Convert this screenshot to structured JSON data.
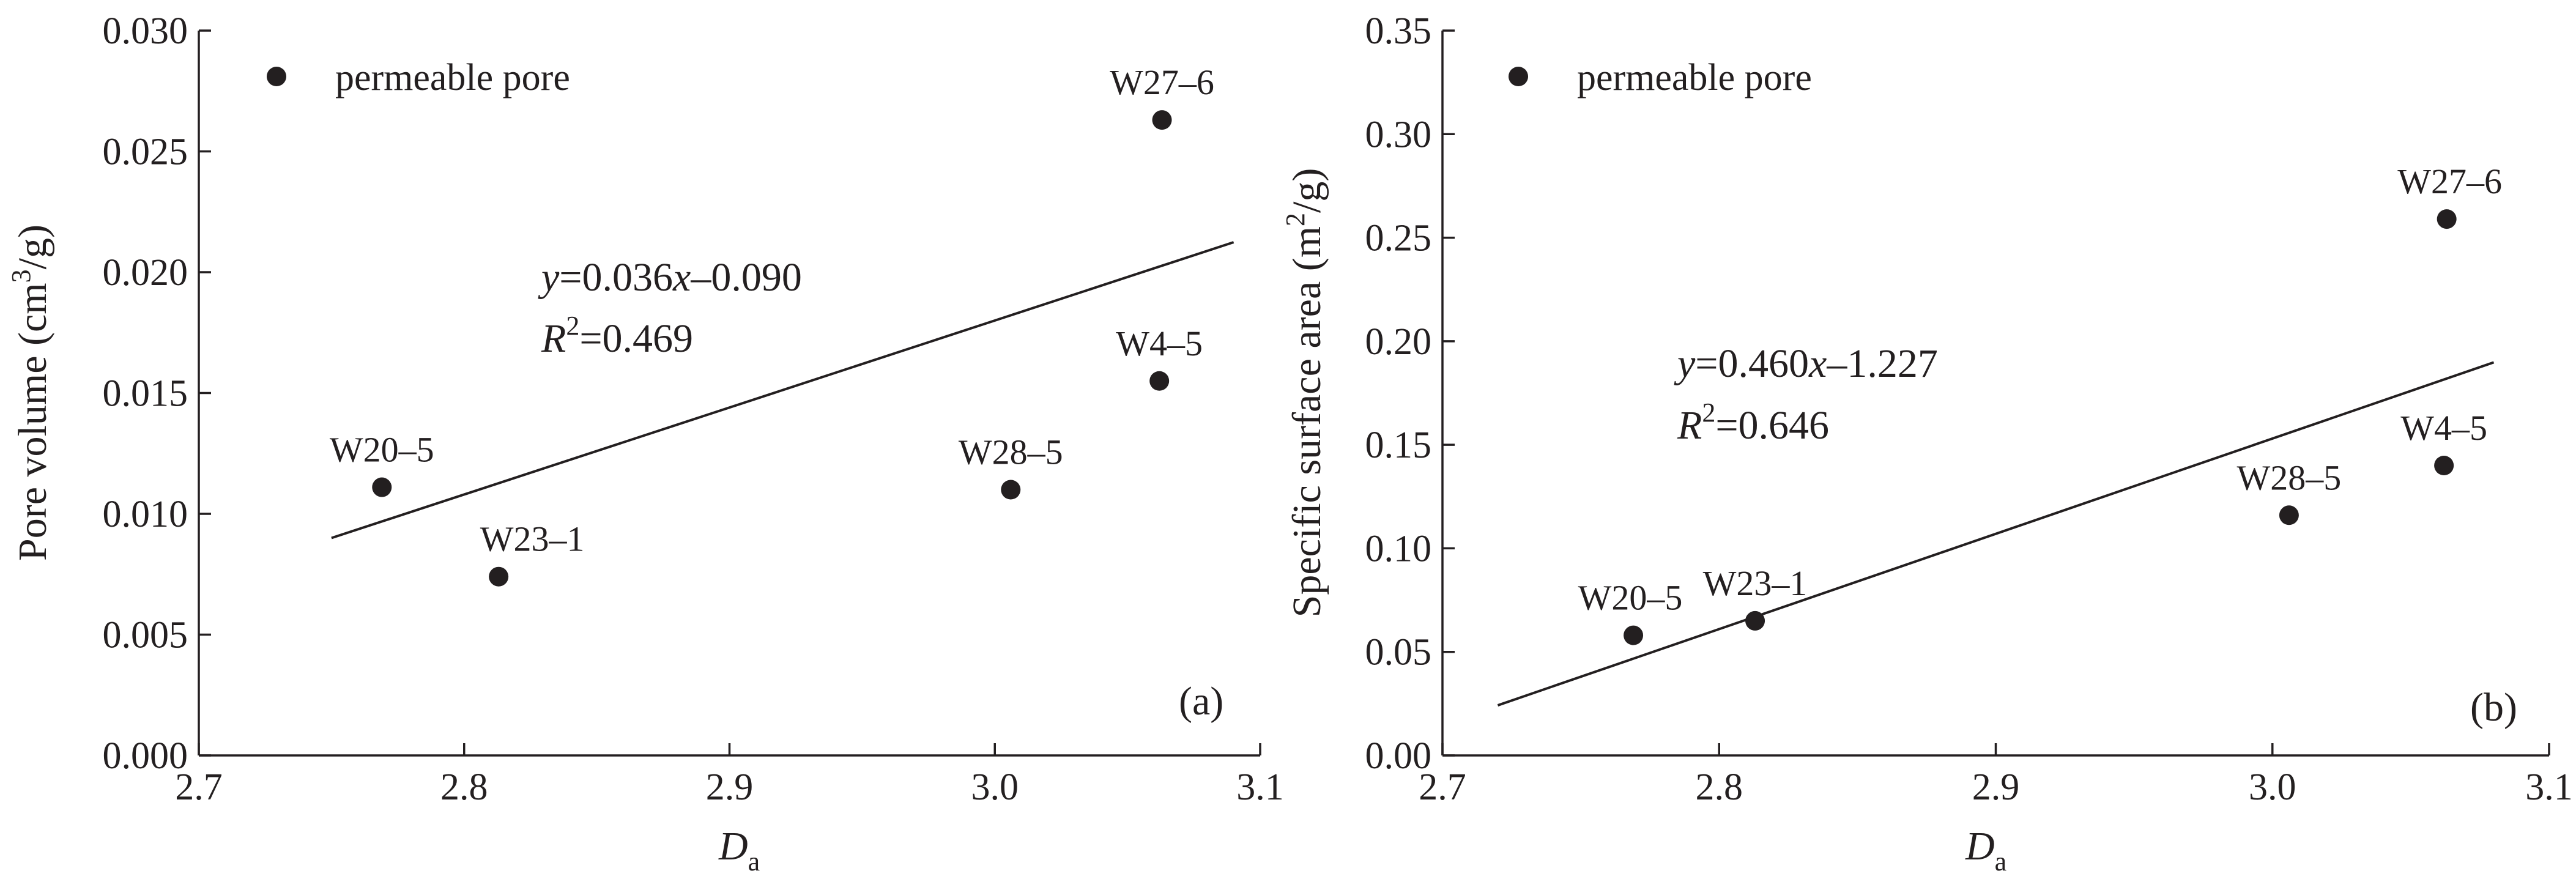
{
  "chart_data": [
    {
      "type": "scatter",
      "panel": "(a)",
      "xlabel": {
        "main": "D",
        "sub": "a"
      },
      "ylabel": {
        "before": "Pore volume (cm",
        "sup": "3",
        "after": "/g)"
      },
      "xlim": [
        2.7,
        3.1
      ],
      "ylim": [
        0.0,
        0.03
      ],
      "xticks": [
        "2.7",
        "2.8",
        "2.9",
        "3.0",
        "3.1"
      ],
      "yticks": [
        "0.000",
        "0.005",
        "0.010",
        "0.015",
        "0.020",
        "0.025",
        "0.030"
      ],
      "legend": {
        "label": "permeable pore",
        "position": "top-left"
      },
      "series": [
        {
          "name": "permeable pore",
          "points": [
            {
              "label": "W20–5",
              "x": 2.769,
              "y": 0.0111
            },
            {
              "label": "W23–1",
              "x": 2.813,
              "y": 0.0074
            },
            {
              "label": "W28–5",
              "x": 3.006,
              "y": 0.011
            },
            {
              "label": "W4–5",
              "x": 3.062,
              "y": 0.0155
            },
            {
              "label": "W27–6",
              "x": 3.063,
              "y": 0.0263
            }
          ]
        }
      ],
      "fit": {
        "slope": 0.036,
        "intercept": -0.09,
        "x_range": [
          2.75,
          3.09
        ],
        "equation": {
          "y": "y",
          "eq": "=0.036",
          "x": "x",
          "rest": "–0.090"
        },
        "r2": {
          "r": "R",
          "sup": "2",
          "rest": "=0.469"
        }
      },
      "grid": false
    },
    {
      "type": "scatter",
      "panel": "(b)",
      "xlabel": {
        "main": "D",
        "sub": "a"
      },
      "ylabel": {
        "before": "Specific surface area (m",
        "sup": "2",
        "after": "/g)"
      },
      "xlim": [
        2.7,
        3.1
      ],
      "ylim": [
        0.0,
        0.35
      ],
      "xticks": [
        "2.7",
        "2.8",
        "2.9",
        "3.0",
        "3.1"
      ],
      "yticks": [
        "0.00",
        "0.05",
        "0.10",
        "0.15",
        "0.20",
        "0.25",
        "0.30",
        "0.35"
      ],
      "legend": {
        "label": "permeable pore",
        "position": "top-left"
      },
      "series": [
        {
          "name": "permeable pore",
          "points": [
            {
              "label": "W20–5",
              "x": 2.769,
              "y": 0.058
            },
            {
              "label": "W23–1",
              "x": 2.813,
              "y": 0.065
            },
            {
              "label": "W28–5",
              "x": 3.006,
              "y": 0.116
            },
            {
              "label": "W4–5",
              "x": 3.062,
              "y": 0.14
            },
            {
              "label": "W27–6",
              "x": 3.063,
              "y": 0.259
            }
          ]
        }
      ],
      "fit": {
        "slope": 0.46,
        "intercept": -1.227,
        "x_range": [
          2.72,
          3.08
        ],
        "equation": {
          "y": "y",
          "eq": "=0.460",
          "x": "x",
          "rest": "–1.227"
        },
        "r2": {
          "r": "R",
          "sup": "2",
          "rest": "=0.646"
        }
      },
      "grid": false
    }
  ]
}
